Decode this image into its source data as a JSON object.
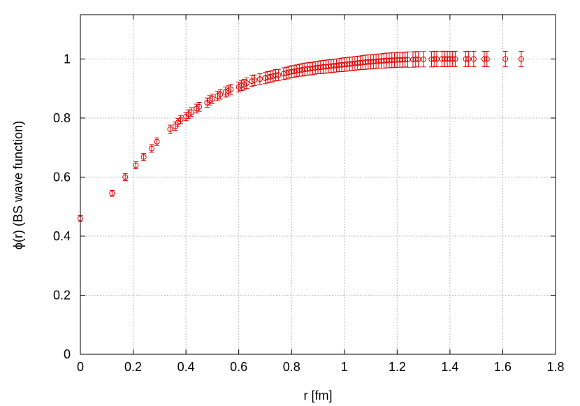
{
  "chart_data": {
    "type": "scatter",
    "title": "",
    "xlabel": "r [fm]",
    "ylabel": "ϕ(r) (BS wave function)",
    "xlim": [
      0,
      1.8
    ],
    "ylim": [
      0,
      1.15
    ],
    "xticks": [
      0,
      0.2,
      0.4,
      0.6,
      0.8,
      1,
      1.2,
      1.4,
      1.6,
      1.8
    ],
    "xtick_labels": [
      "0",
      "0.2",
      "0.4",
      "0.6",
      "0.8",
      "1",
      "1.2",
      "1.4",
      "1.6",
      "1.8"
    ],
    "yticks": [
      0,
      0.2,
      0.4,
      0.6,
      0.8,
      1
    ],
    "ytick_labels": [
      "0",
      "0.2",
      "0.4",
      "0.6",
      "0.8",
      "1"
    ],
    "grid": true,
    "legend": false,
    "marker": "open-circle",
    "color": "#e00000",
    "series": [
      {
        "points": [
          [
            0.0,
            0.46,
            0.01
          ],
          [
            0.12,
            0.545,
            0.01
          ],
          [
            0.17,
            0.6,
            0.012
          ],
          [
            0.21,
            0.64,
            0.012
          ],
          [
            0.24,
            0.668,
            0.012
          ],
          [
            0.27,
            0.697,
            0.013
          ],
          [
            0.29,
            0.72,
            0.013
          ],
          [
            0.34,
            0.762,
            0.014
          ],
          [
            0.36,
            0.772,
            0.014
          ],
          [
            0.37,
            0.785,
            0.014
          ],
          [
            0.38,
            0.795,
            0.014
          ],
          [
            0.4,
            0.805,
            0.014
          ],
          [
            0.41,
            0.813,
            0.015
          ],
          [
            0.42,
            0.82,
            0.015
          ],
          [
            0.44,
            0.832,
            0.015
          ],
          [
            0.45,
            0.838,
            0.015
          ],
          [
            0.48,
            0.852,
            0.016
          ],
          [
            0.49,
            0.86,
            0.016
          ],
          [
            0.5,
            0.865,
            0.016
          ],
          [
            0.52,
            0.875,
            0.016
          ],
          [
            0.53,
            0.88,
            0.016
          ],
          [
            0.55,
            0.888,
            0.017
          ],
          [
            0.56,
            0.892,
            0.017
          ],
          [
            0.57,
            0.897,
            0.017
          ],
          [
            0.6,
            0.905,
            0.017
          ],
          [
            0.61,
            0.91,
            0.017
          ],
          [
            0.62,
            0.913,
            0.018
          ],
          [
            0.63,
            0.918,
            0.018
          ],
          [
            0.65,
            0.925,
            0.018
          ],
          [
            0.66,
            0.928,
            0.018
          ],
          [
            0.68,
            0.932,
            0.018
          ],
          [
            0.7,
            0.935,
            0.019
          ],
          [
            0.71,
            0.938,
            0.019
          ],
          [
            0.72,
            0.94,
            0.019
          ],
          [
            0.73,
            0.942,
            0.019
          ],
          [
            0.74,
            0.945,
            0.019
          ],
          [
            0.75,
            0.946,
            0.019
          ],
          [
            0.77,
            0.95,
            0.02
          ],
          [
            0.78,
            0.952,
            0.02
          ],
          [
            0.79,
            0.955,
            0.02
          ],
          [
            0.8,
            0.957,
            0.02
          ],
          [
            0.81,
            0.958,
            0.02
          ],
          [
            0.82,
            0.96,
            0.02
          ],
          [
            0.83,
            0.962,
            0.02
          ],
          [
            0.84,
            0.963,
            0.021
          ],
          [
            0.85,
            0.965,
            0.021
          ],
          [
            0.86,
            0.966,
            0.021
          ],
          [
            0.87,
            0.967,
            0.021
          ],
          [
            0.88,
            0.968,
            0.021
          ],
          [
            0.89,
            0.97,
            0.021
          ],
          [
            0.9,
            0.971,
            0.021
          ],
          [
            0.91,
            0.972,
            0.022
          ],
          [
            0.92,
            0.973,
            0.022
          ],
          [
            0.93,
            0.974,
            0.022
          ],
          [
            0.94,
            0.975,
            0.022
          ],
          [
            0.95,
            0.976,
            0.022
          ],
          [
            0.96,
            0.977,
            0.022
          ],
          [
            0.97,
            0.978,
            0.022
          ],
          [
            0.98,
            0.979,
            0.022
          ],
          [
            0.99,
            0.98,
            0.023
          ],
          [
            1.0,
            0.981,
            0.023
          ],
          [
            1.01,
            0.982,
            0.023
          ],
          [
            1.02,
            0.983,
            0.023
          ],
          [
            1.03,
            0.984,
            0.023
          ],
          [
            1.04,
            0.985,
            0.023
          ],
          [
            1.05,
            0.986,
            0.023
          ],
          [
            1.06,
            0.987,
            0.023
          ],
          [
            1.07,
            0.988,
            0.024
          ],
          [
            1.08,
            0.989,
            0.024
          ],
          [
            1.09,
            0.99,
            0.024
          ],
          [
            1.1,
            0.99,
            0.024
          ],
          [
            1.11,
            0.991,
            0.024
          ],
          [
            1.12,
            0.992,
            0.024
          ],
          [
            1.13,
            0.993,
            0.024
          ],
          [
            1.14,
            0.993,
            0.024
          ],
          [
            1.15,
            0.994,
            0.025
          ],
          [
            1.16,
            0.995,
            0.025
          ],
          [
            1.17,
            0.995,
            0.025
          ],
          [
            1.18,
            0.996,
            0.025
          ],
          [
            1.19,
            0.996,
            0.025
          ],
          [
            1.2,
            0.997,
            0.025
          ],
          [
            1.21,
            0.997,
            0.025
          ],
          [
            1.22,
            0.997,
            0.025
          ],
          [
            1.23,
            0.998,
            0.025
          ],
          [
            1.24,
            0.998,
            0.026
          ],
          [
            1.26,
            0.998,
            0.026
          ],
          [
            1.27,
            0.999,
            0.026
          ],
          [
            1.28,
            0.999,
            0.026
          ],
          [
            1.3,
            0.999,
            0.026
          ],
          [
            1.33,
            0.999,
            0.026
          ],
          [
            1.34,
            1.0,
            0.026
          ],
          [
            1.35,
            1.0,
            0.026
          ],
          [
            1.37,
            1.0,
            0.026
          ],
          [
            1.38,
            1.0,
            0.026
          ],
          [
            1.39,
            1.0,
            0.026
          ],
          [
            1.4,
            1.0,
            0.026
          ],
          [
            1.41,
            1.0,
            0.026
          ],
          [
            1.42,
            1.0,
            0.026
          ],
          [
            1.46,
            1.0,
            0.026
          ],
          [
            1.47,
            1.0,
            0.026
          ],
          [
            1.49,
            1.0,
            0.026
          ],
          [
            1.53,
            1.0,
            0.026
          ],
          [
            1.54,
            1.0,
            0.026
          ],
          [
            1.61,
            1.0,
            0.026
          ],
          [
            1.67,
            1.0,
            0.026
          ]
        ]
      }
    ]
  }
}
